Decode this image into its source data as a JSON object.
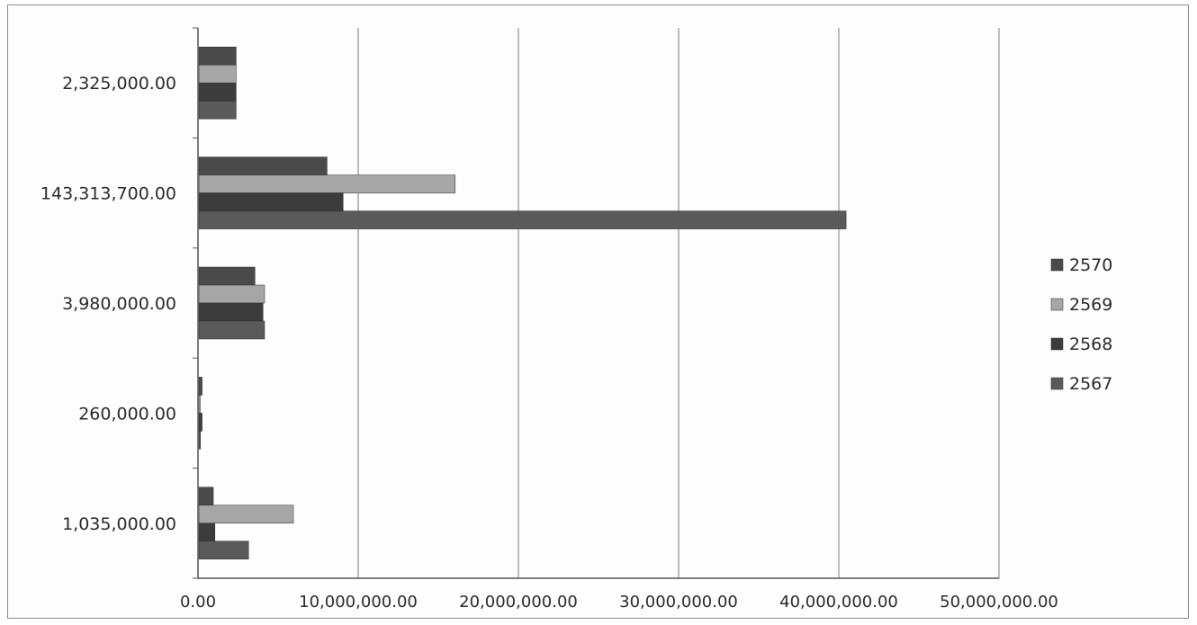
{
  "chart_data": {
    "type": "bar",
    "orientation": "horizontal",
    "title": "",
    "xlabel": "",
    "ylabel": "",
    "xlim": [
      0,
      50000000
    ],
    "x_ticks": [
      "0.00",
      "10,000,000.00",
      "20,000,000.00",
      "30,000,000.00",
      "40,000,000.00",
      "50,000,000.00"
    ],
    "x_tick_values": [
      0,
      10000000,
      20000000,
      30000000,
      40000000,
      50000000
    ],
    "grid": "vertical",
    "legend_position": "right",
    "categories": [
      "2,325,000.00",
      "143,313,700.00",
      "3,980,000.00",
      "260,000.00",
      "1,035,000.00"
    ],
    "series": [
      {
        "name": "2570",
        "color": "#4a4a4a",
        "values": [
          2325000,
          8000000,
          3500000,
          200000,
          900000
        ]
      },
      {
        "name": "2569",
        "color": "#a6a6a6",
        "values": [
          2325000,
          16000000,
          4100000,
          50000,
          5900000
        ]
      },
      {
        "name": "2568",
        "color": "#3c3c3c",
        "values": [
          2325000,
          9000000,
          4000000,
          200000,
          1000000
        ]
      },
      {
        "name": "2567",
        "color": "#5a5a5a",
        "values": [
          2325000,
          40400000,
          4100000,
          100000,
          3100000
        ]
      }
    ]
  }
}
